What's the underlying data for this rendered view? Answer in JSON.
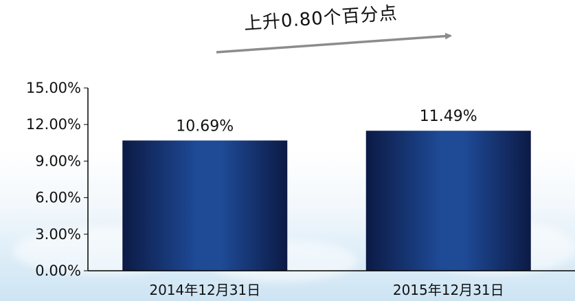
{
  "annotation": {
    "text": "上升0.80个百分点",
    "arrow_color": "#8c8c8c"
  },
  "colors": {
    "bar_dark": "#0c1a45",
    "bar_light": "#1e4a96",
    "axis": "#000000"
  },
  "chart_data": {
    "type": "bar",
    "title": "",
    "xlabel": "",
    "ylabel": "",
    "categories": [
      "2014年12月31日",
      "2015年12月31日"
    ],
    "values": [
      10.69,
      11.49
    ],
    "data_labels": [
      "10.69%",
      "11.49%"
    ],
    "ylim": [
      0,
      15
    ],
    "yticks": [
      0,
      3,
      6,
      9,
      12,
      15
    ],
    "ytick_labels": [
      "0.00%",
      "3.00%",
      "6.00%",
      "9.00%",
      "12.00%",
      "15.00%"
    ],
    "grid": false,
    "legend": "none"
  }
}
